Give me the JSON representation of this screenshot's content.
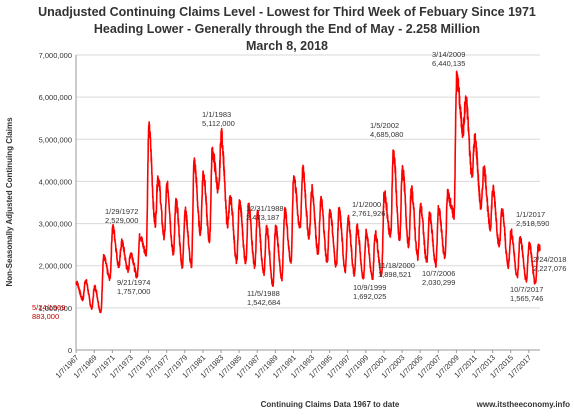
{
  "chart_data": {
    "type": "line",
    "title": [
      "Unadjusted Continuing Claims Level - Lowest for Third Week of Febuary Since 1971",
      "Heading Lower - Generally through the End of May - 2.258 Million",
      "March 8, 2018"
    ],
    "xlabel": "Continuing Claims Data 1967 to date",
    "ylabel": "Non-Seasonally Adjusted Continuing Claims",
    "source": "www.itstheeconomy.info",
    "x_range": [
      1967.0,
      2018.25
    ],
    "ylim": [
      0,
      7000000
    ],
    "y_ticks": [
      {
        "value": 0,
        "label": "0"
      },
      {
        "value": 1000000,
        "label": "1,000,000"
      },
      {
        "value": 2000000,
        "label": "2,000,000"
      },
      {
        "value": 3000000,
        "label": "3,000,000"
      },
      {
        "value": 4000000,
        "label": "4,000,000"
      },
      {
        "value": 5000000,
        "label": "5,000,000"
      },
      {
        "value": 6000000,
        "label": "6,000,000"
      },
      {
        "value": 7000000,
        "label": "7,000,000"
      }
    ],
    "x_ticks": [
      "1/7/1967",
      "1/7/1969",
      "1/7/1971",
      "1/7/1973",
      "1/7/1975",
      "1/7/1977",
      "1/7/1979",
      "1/7/1981",
      "1/7/1983",
      "1/7/1985",
      "1/7/1987",
      "1/7/1989",
      "1/7/1991",
      "1/7/1993",
      "1/7/1995",
      "1/7/1997",
      "1/7/1999",
      "1/7/2001",
      "1/7/2003",
      "1/7/2005",
      "1/7/2007",
      "1/7/2009",
      "1/7/2011",
      "1/7/2013",
      "1/7/2015",
      "1/7/2017"
    ],
    "series_color": "#ff0000",
    "grid": true,
    "legend": "none",
    "annual_cycle": {
      "peak_fraction_of_year": 0.05,
      "trough_fraction_of_year": 0.75,
      "values": [
        [
          1967.0,
          1600000,
          1200000
        ],
        [
          1968.0,
          1650000,
          1000000
        ],
        [
          1969.0,
          1500000,
          900000
        ],
        [
          1970.0,
          2200000,
          1700000
        ],
        [
          1971.0,
          2900000,
          2000000
        ],
        [
          1972.0,
          2550000,
          1900000
        ],
        [
          1973.0,
          2300000,
          1750000
        ],
        [
          1974.0,
          2700000,
          2300000
        ],
        [
          1975.0,
          5250000,
          3000000
        ],
        [
          1976.0,
          4100000,
          2700000
        ],
        [
          1977.0,
          3900000,
          2300000
        ],
        [
          1978.0,
          3500000,
          2000000
        ],
        [
          1979.0,
          3300000,
          2000000
        ],
        [
          1980.0,
          4450000,
          2800000
        ],
        [
          1981.0,
          4200000,
          2600000
        ],
        [
          1982.0,
          4700000,
          3800000
        ],
        [
          1983.0,
          5112000,
          3000000
        ],
        [
          1984.0,
          3600000,
          2100000
        ],
        [
          1985.0,
          3500000,
          2100000
        ],
        [
          1986.0,
          3400000,
          2000000
        ],
        [
          1987.0,
          3250000,
          1800000
        ],
        [
          1988.0,
          2900000,
          1550000
        ],
        [
          1989.0,
          2900000,
          1700000
        ],
        [
          1990.0,
          3300000,
          2100000
        ],
        [
          1991.0,
          4100000,
          2900000
        ],
        [
          1992.0,
          4250000,
          2700000
        ],
        [
          1993.0,
          3800000,
          2300000
        ],
        [
          1994.0,
          3550000,
          2100000
        ],
        [
          1995.0,
          3300000,
          2000000
        ],
        [
          1996.0,
          3300000,
          1900000
        ],
        [
          1997.0,
          3100000,
          1800000
        ],
        [
          1998.0,
          2900000,
          1700000
        ],
        [
          1999.0,
          2800000,
          1692025
        ],
        [
          2000.0,
          2761926,
          1800000
        ],
        [
          2001.0,
          3700000,
          2700000
        ],
        [
          2002.0,
          4685080,
          2600000
        ],
        [
          2003.0,
          4300000,
          2500000
        ],
        [
          2004.0,
          3800000,
          2200000
        ],
        [
          2005.0,
          3400000,
          2100000
        ],
        [
          2006.0,
          3200000,
          2030299
        ],
        [
          2007.0,
          3350000,
          2200000
        ],
        [
          2008.0,
          3700000,
          3200000
        ],
        [
          2009.0,
          6440135,
          5200000
        ],
        [
          2010.0,
          5900000,
          4200000
        ],
        [
          2011.0,
          5000000,
          3400000
        ],
        [
          2012.0,
          4300000,
          2900000
        ],
        [
          2013.0,
          3800000,
          2500000
        ],
        [
          2014.0,
          3300000,
          2000000
        ],
        [
          2015.0,
          2800000,
          1750000
        ],
        [
          2016.0,
          2650000,
          1650000
        ],
        [
          2017.0,
          2518590,
          1565746
        ],
        [
          2018.0,
          2450000,
          2227076
        ]
      ]
    },
    "annotations": [
      {
        "date": "5/24/1969",
        "value": "883,000",
        "x": 1969.4,
        "y": 883000,
        "color": "#c00000"
      },
      {
        "date": "1/29/1972",
        "value": "2,529,000",
        "x": 1972.08,
        "y": 2529000,
        "color": "#333333"
      },
      {
        "date": "9/21/1974",
        "value": "1,757,000",
        "x": 1974.72,
        "y": 1757000,
        "color": "#333333"
      },
      {
        "date": "1/1/1983",
        "value": "5,112,000",
        "x": 1983.0,
        "y": 5112000,
        "color": "#333333"
      },
      {
        "date": "12/31/1988",
        "value": "2,473,187",
        "x": 1989.0,
        "y": 2473187,
        "color": "#333333"
      },
      {
        "date": "11/5/1988",
        "value": "1,542,684",
        "x": 1988.85,
        "y": 1542684,
        "color": "#333333"
      },
      {
        "date": "1/1/2000",
        "value": "2,761,926",
        "x": 2000.0,
        "y": 2761926,
        "color": "#333333"
      },
      {
        "date": "10/9/1999",
        "value": "1,692,025",
        "x": 1999.77,
        "y": 1692025,
        "color": "#333333"
      },
      {
        "date": "1/5/2002",
        "value": "4,685,080",
        "x": 2002.0,
        "y": 4685080,
        "color": "#333333"
      },
      {
        "date": "11/18/2000",
        "value": "1,898,521",
        "x": 2000.88,
        "y": 1898521,
        "color": "#333333"
      },
      {
        "date": "10/7/2006",
        "value": "2,030,299",
        "x": 2006.77,
        "y": 2030299,
        "color": "#333333"
      },
      {
        "date": "3/14/2009",
        "value": "6,440,135",
        "x": 2009.2,
        "y": 6440135,
        "color": "#333333"
      },
      {
        "date": "1/1/2017",
        "value": "2,518,590",
        "x": 2017.0,
        "y": 2518590,
        "color": "#333333"
      },
      {
        "date": "10/7/2017",
        "value": "1,565,746",
        "x": 2017.77,
        "y": 1565746,
        "color": "#333333"
      },
      {
        "date": "2/24/2018",
        "value": "2,227,076",
        "x": 2018.15,
        "y": 2227076,
        "color": "#333333"
      }
    ]
  }
}
